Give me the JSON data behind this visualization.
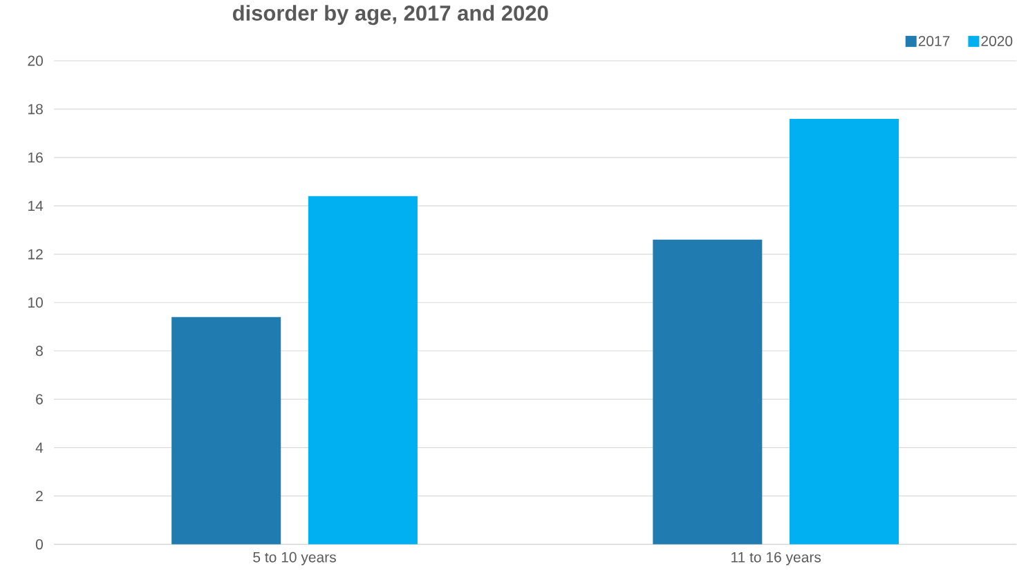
{
  "chart_data": {
    "type": "bar",
    "title": "disorder by age, 2017 and 2020",
    "categories": [
      "5 to 10 years",
      "11 to 16 years"
    ],
    "series": [
      {
        "name": "2017",
        "color": "#1f7bb0",
        "values": [
          9.4,
          12.6
        ]
      },
      {
        "name": "2020",
        "color": "#00b0f0",
        "values": [
          14.4,
          17.6
        ]
      }
    ],
    "ylim": [
      0,
      20
    ],
    "yticks": [
      0,
      2,
      4,
      6,
      8,
      10,
      12,
      14,
      16,
      18,
      20
    ],
    "grid": "y",
    "legend": "top right"
  }
}
